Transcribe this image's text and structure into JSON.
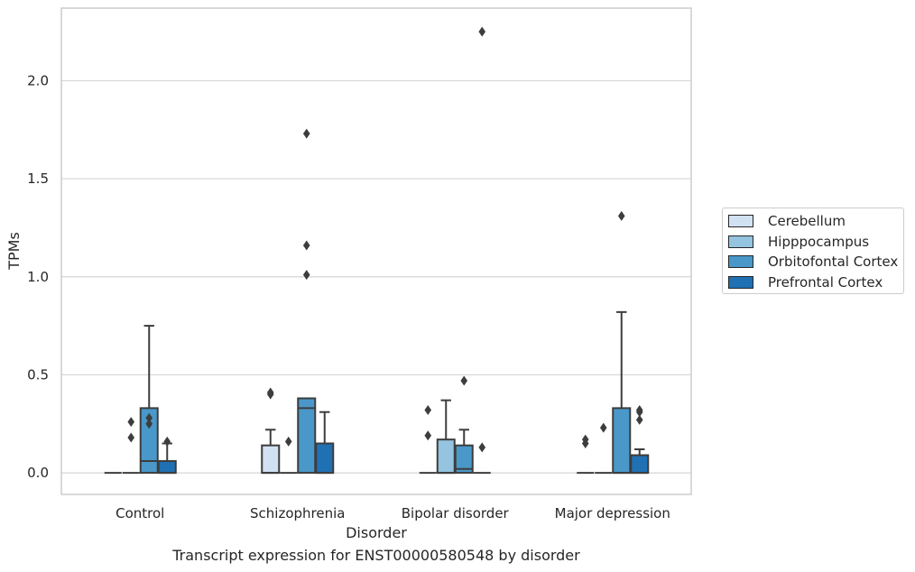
{
  "caption": "Transcript expression for ENST00000580548 by disorder",
  "chart_data": {
    "type": "box",
    "xlabel": "Disorder",
    "ylabel": "TPMs",
    "ylim": [
      -0.11,
      2.37
    ],
    "yticks": [
      "0.0",
      "0.5",
      "1.0",
      "1.5",
      "2.0"
    ],
    "ytick_values": [
      0,
      0.5,
      1.0,
      1.5,
      2.0
    ],
    "grid": "horizontal",
    "legend_position": "right",
    "categories": [
      "Control",
      "Schizophrenia",
      "Bipolar disorder",
      "Major depression"
    ],
    "series": [
      {
        "name": "Cerebellum",
        "color": "#d0e1f2",
        "boxes": [
          {
            "q1": 0,
            "median": 0,
            "q3": 0,
            "whisker_low": 0,
            "whisker_high": 0,
            "outliers": []
          },
          {
            "q1": 0,
            "median": 0,
            "q3": 0.14,
            "whisker_low": 0,
            "whisker_high": 0.22,
            "outliers": [
              0.4,
              0.41
            ]
          },
          {
            "q1": 0,
            "median": 0,
            "q3": 0,
            "whisker_low": 0,
            "whisker_high": 0,
            "outliers": [
              0.19,
              0.32
            ]
          },
          {
            "q1": 0,
            "median": 0,
            "q3": 0,
            "whisker_low": 0,
            "whisker_high": 0,
            "outliers": [
              0.15,
              0.17
            ]
          }
        ]
      },
      {
        "name": "Hipppocampus",
        "color": "#94c4df",
        "boxes": [
          {
            "q1": 0,
            "median": 0,
            "q3": 0,
            "whisker_low": 0,
            "whisker_high": 0,
            "outliers": [
              0.18,
              0.26
            ]
          },
          {
            "q1": 0,
            "median": 0,
            "q3": 0,
            "whisker_low": 0,
            "whisker_high": 0,
            "outliers": [
              0.16
            ]
          },
          {
            "q1": 0,
            "median": 0,
            "q3": 0.17,
            "whisker_low": 0,
            "whisker_high": 0.37,
            "outliers": []
          },
          {
            "q1": 0,
            "median": 0,
            "q3": 0,
            "whisker_low": 0,
            "whisker_high": 0,
            "outliers": [
              0.23
            ]
          }
        ]
      },
      {
        "name": "Orbitofontal Cortex",
        "color": "#4a98c9",
        "boxes": [
          {
            "q1": 0,
            "median": 0.06,
            "q3": 0.33,
            "whisker_low": 0,
            "whisker_high": 0.75,
            "outliers": [
              0.25,
              0.28
            ]
          },
          {
            "q1": 0,
            "median": 0.33,
            "q3": 0.38,
            "whisker_low": 0,
            "whisker_high": 0.38,
            "outliers": [
              1.01,
              1.16,
              1.73
            ]
          },
          {
            "q1": 0,
            "median": 0.02,
            "q3": 0.14,
            "whisker_low": 0,
            "whisker_high": 0.22,
            "outliers": [
              0.47
            ]
          },
          {
            "q1": 0,
            "median": 0,
            "q3": 0.33,
            "whisker_low": 0,
            "whisker_high": 0.82,
            "outliers": [
              1.31
            ]
          }
        ]
      },
      {
        "name": "Prefrontal Cortex",
        "color": "#2070b4",
        "boxes": [
          {
            "q1": 0,
            "median": 0,
            "q3": 0.06,
            "whisker_low": 0,
            "whisker_high": 0.15,
            "outliers": [
              0.16
            ]
          },
          {
            "q1": 0,
            "median": 0,
            "q3": 0.15,
            "whisker_low": 0,
            "whisker_high": 0.31,
            "outliers": []
          },
          {
            "q1": 0,
            "median": 0,
            "q3": 0,
            "whisker_low": 0,
            "whisker_high": 0,
            "outliers": [
              0.13,
              2.25
            ]
          },
          {
            "q1": 0,
            "median": 0,
            "q3": 0.09,
            "whisker_low": 0,
            "whisker_high": 0.12,
            "outliers": [
              0.27,
              0.31,
              0.32
            ]
          }
        ]
      }
    ]
  }
}
